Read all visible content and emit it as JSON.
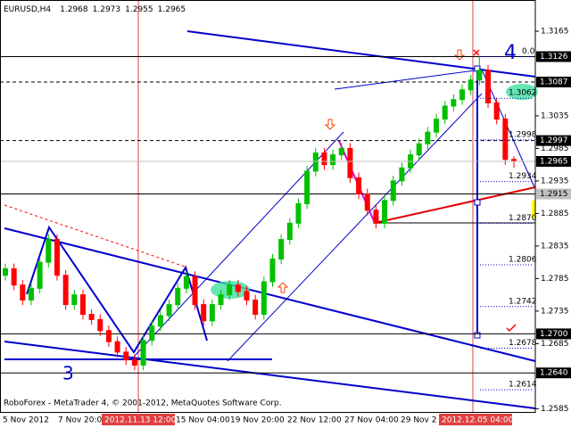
{
  "chart_data": {
    "type": "candlestick",
    "symbol": "EURUSD,H4",
    "open": [
      1.279,
      1.28,
      1.2775,
      1.2752,
      1.277,
      1.281,
      1.2845,
      1.279,
      1.2745,
      1.276,
      1.273,
      1.2722,
      1.2705,
      1.2688,
      1.2672,
      1.266,
      1.2652,
      1.269,
      1.2712,
      1.2728,
      1.2745,
      1.277,
      1.2788,
      1.2745,
      1.272,
      1.2745,
      1.276,
      1.2775,
      1.2765,
      1.2752,
      1.273,
      1.278,
      1.2815,
      1.2845,
      1.287,
      1.29,
      1.295,
      1.2978,
      1.296,
      1.2975,
      1.2985,
      1.294,
      1.2915,
      1.289,
      1.287,
      1.2905,
      1.2935,
      1.2955,
      1.2975,
      1.2992,
      1.301,
      1.303,
      1.305,
      1.306,
      1.3075,
      1.309,
      1.3105,
      1.3055,
      1.303,
      1.2968
    ],
    "high": [
      1.2808,
      1.2808,
      1.2783,
      1.2778,
      1.2818,
      1.2853,
      1.2853,
      1.2798,
      1.2768,
      1.2768,
      1.2738,
      1.273,
      1.2713,
      1.2696,
      1.268,
      1.2668,
      1.2698,
      1.272,
      1.2736,
      1.2753,
      1.2778,
      1.2796,
      1.2796,
      1.2753,
      1.2753,
      1.2768,
      1.2783,
      1.2783,
      1.2773,
      1.276,
      1.2788,
      1.2823,
      1.2853,
      1.2878,
      1.2908,
      1.2958,
      1.2986,
      1.2986,
      1.2983,
      1.2993,
      1.2993,
      1.2948,
      1.2923,
      1.2898,
      1.2913,
      1.2943,
      1.2963,
      1.2983,
      1.3,
      1.3018,
      1.3038,
      1.3058,
      1.3068,
      1.3083,
      1.3098,
      1.3126,
      1.3113,
      1.3063,
      1.3038,
      1.2973
    ],
    "low": [
      1.2782,
      1.2767,
      1.2744,
      1.2744,
      1.2762,
      1.2802,
      1.2782,
      1.2737,
      1.2737,
      1.2722,
      1.2714,
      1.2697,
      1.268,
      1.2664,
      1.2652,
      1.2644,
      1.2644,
      1.2682,
      1.2704,
      1.272,
      1.2737,
      1.2762,
      1.2737,
      1.2712,
      1.2712,
      1.2737,
      1.2752,
      1.2757,
      1.2744,
      1.2722,
      1.2722,
      1.2772,
      1.2807,
      1.2837,
      1.2862,
      1.2892,
      1.2942,
      1.2952,
      1.2952,
      1.2967,
      1.2932,
      1.2907,
      1.2882,
      1.2862,
      1.2862,
      1.2897,
      1.2927,
      1.2947,
      1.2967,
      1.2984,
      1.3002,
      1.3022,
      1.3042,
      1.3052,
      1.3067,
      1.3082,
      1.3047,
      1.3022,
      1.296,
      1.2955
    ],
    "close": [
      1.28,
      1.2775,
      1.2752,
      1.277,
      1.281,
      1.2845,
      1.279,
      1.2745,
      1.276,
      1.273,
      1.2722,
      1.2705,
      1.2688,
      1.2672,
      1.266,
      1.2652,
      1.269,
      1.2712,
      1.2728,
      1.2745,
      1.277,
      1.2788,
      1.2745,
      1.272,
      1.2745,
      1.276,
      1.2775,
      1.2765,
      1.2752,
      1.273,
      1.278,
      1.2815,
      1.2845,
      1.287,
      1.29,
      1.295,
      1.2978,
      1.296,
      1.2975,
      1.2985,
      1.294,
      1.2915,
      1.289,
      1.287,
      1.2905,
      1.2935,
      1.2955,
      1.2975,
      1.2992,
      1.301,
      1.303,
      1.305,
      1.306,
      1.3075,
      1.309,
      1.3105,
      1.3055,
      1.303,
      1.2968,
      1.2965
    ],
    "up_color": "#00c000",
    "down_color": "#ff0000",
    "ylim": [
      1.258,
      1.3213
    ],
    "yticks": [
      1.3165,
      1.3035,
      1.2985,
      1.2935,
      1.2885,
      1.2835,
      1.2785,
      1.2735,
      1.2685,
      1.2585
    ],
    "grid": false,
    "levels": [
      1.3126,
      1.3087,
      1.2997,
      1.2915,
      {
        "value": 1.27,
        "label": "1.2700"
      },
      {
        "value": 1.264,
        "label": "1.2640"
      }
    ],
    "level_colors": [
      "#000000",
      "#000000",
      "#000000",
      "#c0c0c0",
      "#000000",
      "#000000"
    ],
    "level_dashed": [
      false,
      true,
      true,
      false,
      false,
      false
    ],
    "fib_levels": [
      {
        "value": 1.3126,
        "label": "0.0"
      },
      1.3062,
      1.2998,
      1.2934,
      {
        "value": 1.287,
        "label": "1.2870"
      },
      1.2806,
      1.2742,
      1.2678,
      1.2614
    ],
    "xtick_labels": [
      "5 Nov 2012",
      "7 Nov 20:00",
      "2012.11.13 12:00",
      "15 Nov 04:00",
      "19 Nov 20:00",
      "22 Nov 12:00",
      "27 Nov 04:00",
      "29 Nov 2",
      "2012.12.05 04:00"
    ],
    "annotations": [
      "3",
      "4"
    ],
    "footer": "RoboForex - MetaTrader 4, © 2001-2012, MetaQuotes Software Corp."
  }
}
